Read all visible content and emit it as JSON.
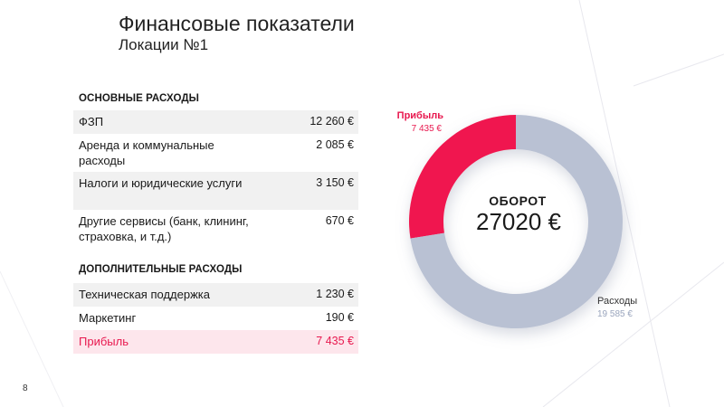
{
  "title": "Финансовые показатели",
  "subtitle": "Локации №1",
  "sections": {
    "main": {
      "heading": "ОСНОВНЫЕ РАСХОДЫ",
      "rows": [
        {
          "label": "ФЗП",
          "value": "12 260 €"
        },
        {
          "label": "Аренда и  коммунальные расходы",
          "value": "2 085 €"
        },
        {
          "label": "Налоги и юридические услуги",
          "value": "3 150 €"
        },
        {
          "label": "Другие сервисы (банк, клининг, страховка, и т.д.)",
          "value": "670 €"
        }
      ]
    },
    "additional": {
      "heading": "ДОПОЛНИТЕЛЬНЫЕ РАСХОДЫ",
      "rows": [
        {
          "label": "Техническая поддержка",
          "value": "1 230 €"
        },
        {
          "label": "Маркетинг",
          "value": "190 €"
        }
      ]
    },
    "profit": {
      "label": "Прибыль",
      "value": "7 435 €"
    }
  },
  "page_number": "8",
  "colors": {
    "profit": "#f0184f",
    "expenses": "#b9c1d3",
    "accent_text": "#e8194f",
    "expenses_text": "#9aa5bd"
  },
  "chart_data": {
    "type": "pie",
    "donut": true,
    "center_title": "ОБОРОТ",
    "center_value": "27020 €",
    "slices": [
      {
        "name": "Прибыль",
        "label": "7 435 €",
        "value": 7435
      },
      {
        "name": "Расходы",
        "label": "19 585 €",
        "value": 19585
      }
    ]
  }
}
